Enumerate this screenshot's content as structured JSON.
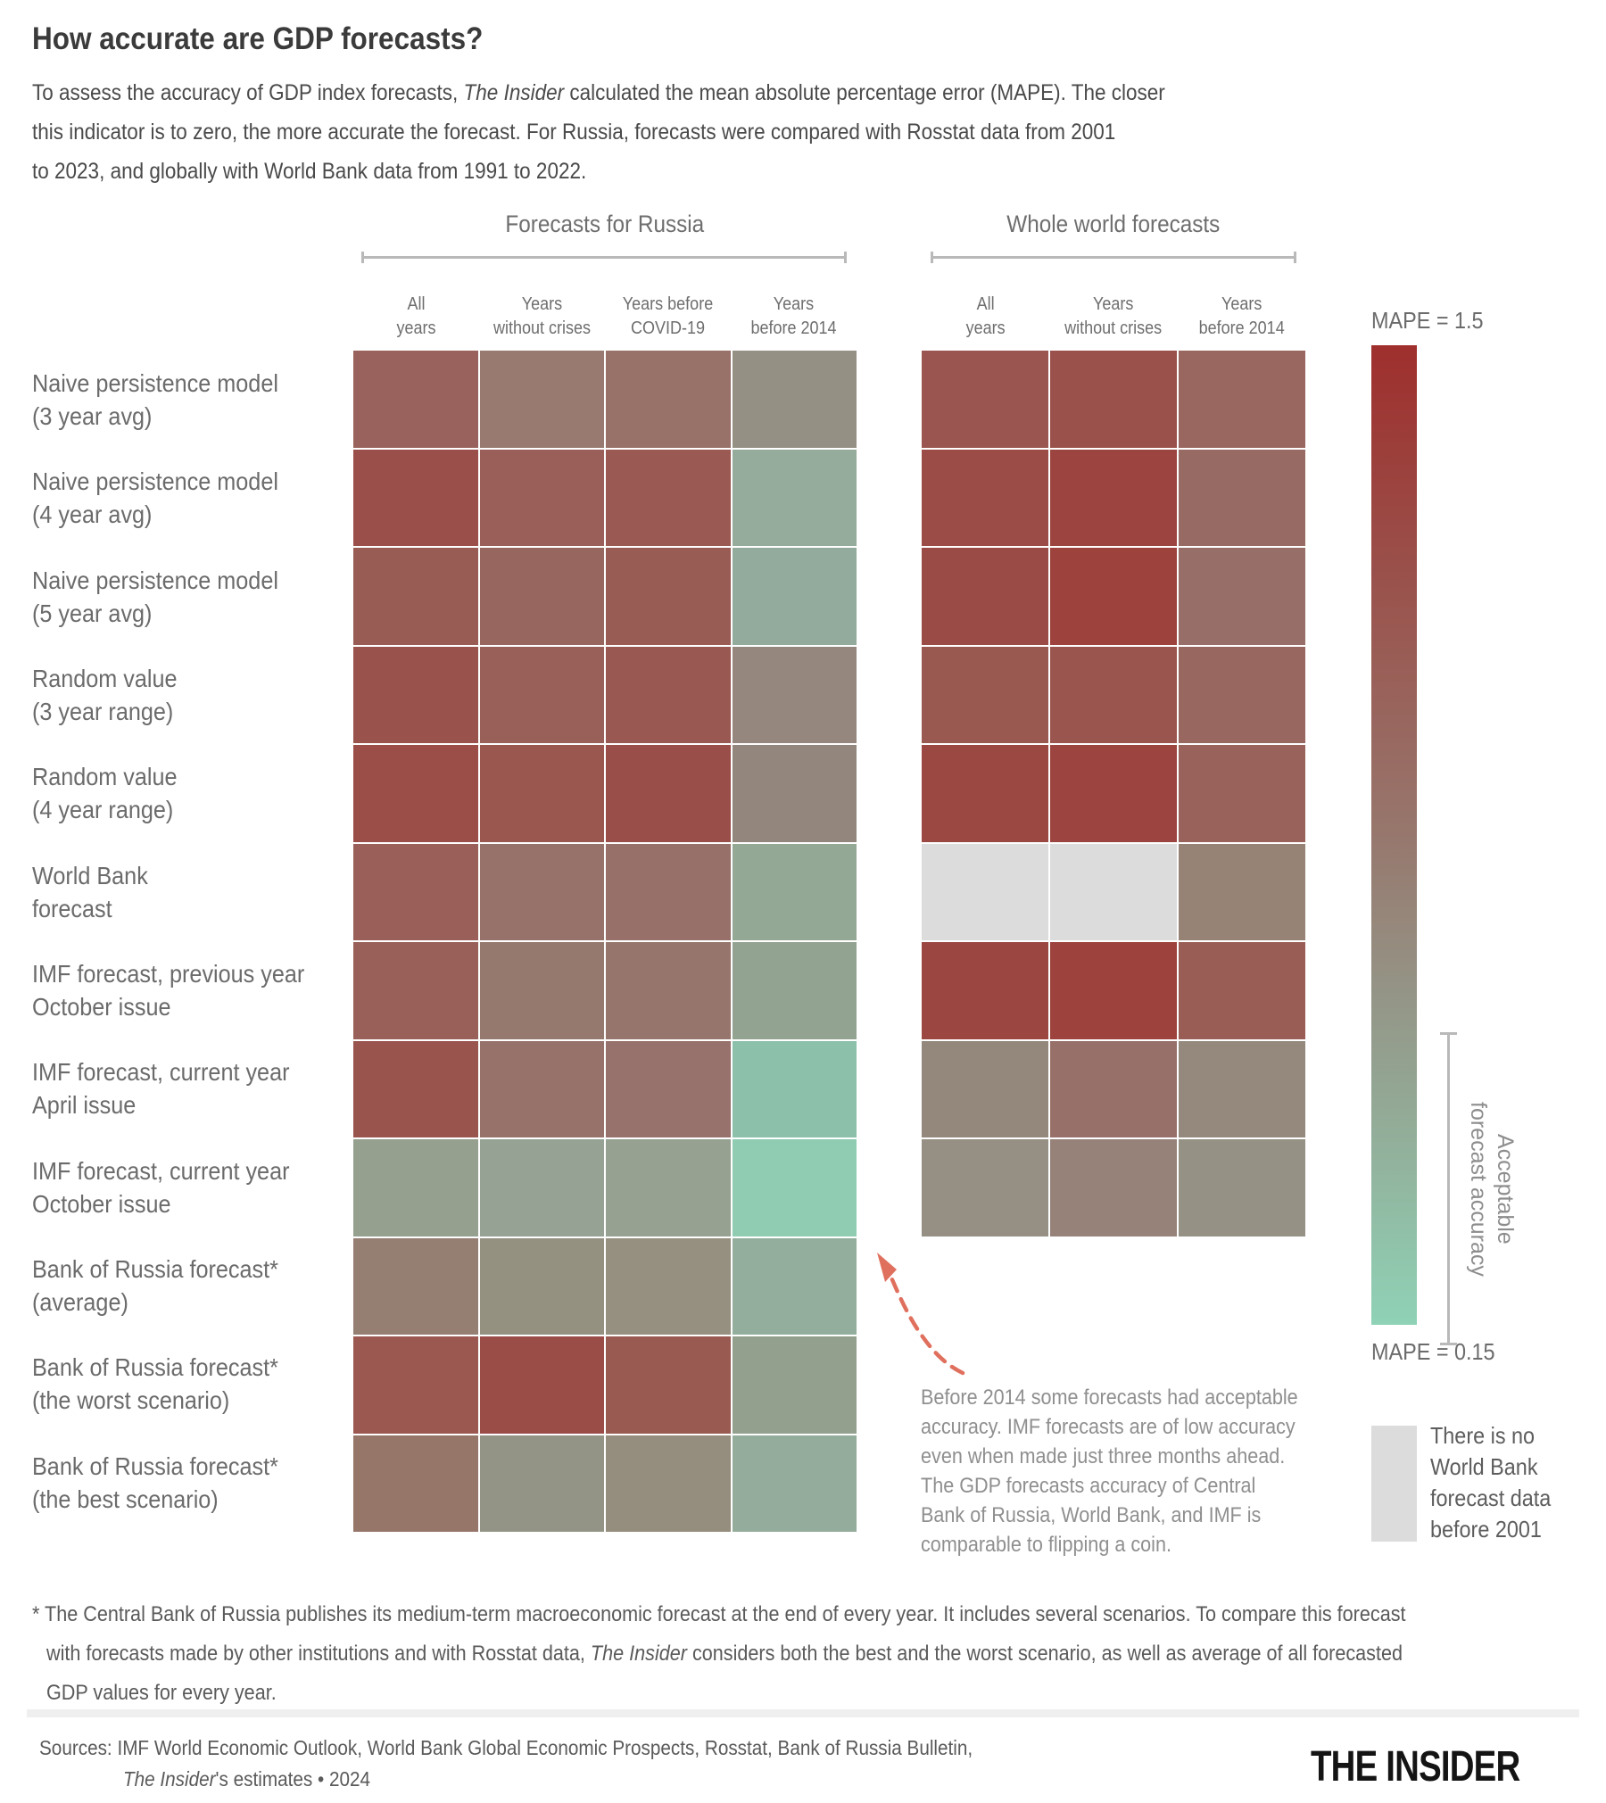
{
  "page": {
    "title": "How accurate are GDP forecasts?",
    "subtitle_lines": [
      [
        {
          "t": "To assess the accuracy of GDP index forecasts, "
        },
        {
          "t": "The Insider",
          "i": true
        },
        {
          "t": " calculated the mean absolute percentage error (MAPE). The closer"
        }
      ],
      [
        {
          "t": "this indicator is to zero, the more accurate the forecast. For Russia, forecasts were compared with Rosstat data from 2001"
        }
      ],
      [
        {
          "t": "to 2023, and globally with World Bank data from 1991 to 2022."
        }
      ]
    ],
    "footnote_lines": [
      [
        {
          "t": "* The Central Bank of Russia publishes its medium-term macroeconomic forecast at the end of every year. It includes several scenarios. To compare this forecast"
        }
      ],
      [
        {
          "t": "with forecasts made by other institutions and with Rosstat data, "
        },
        {
          "t": "The Insider",
          "i": true
        },
        {
          "t": " considers both the best and the worst scenario, as well as average of all forecasted"
        }
      ],
      [
        {
          "t": "GDP values for every year."
        }
      ]
    ],
    "sources": {
      "line1": "Sources: IMF World Economic Outlook, World Bank Global Economic Prospects, Rosstat, Bank of Russia Bulletin,",
      "line2": [
        {
          "t": "The Insider",
          "i": true
        },
        {
          "t": "'s estimates • 2024"
        }
      ]
    },
    "logo": "THE INSIDER"
  },
  "chart_data": {
    "type": "heatmap",
    "title": "How accurate are GDP forecasts?",
    "groups": [
      {
        "key": "russia",
        "title": "Forecasts for Russia",
        "columns": [
          "All\nyears",
          "Years\nwithout crises",
          "Years before\nCOVID-19",
          "Years\nbefore 2014"
        ]
      },
      {
        "key": "world",
        "title": "Whole world forecasts",
        "columns": [
          "All\nyears",
          "Years\nwithout crises",
          "Years\nbefore 2014"
        ]
      }
    ],
    "rows": [
      [
        "Naive persistence model",
        "(3 year avg)"
      ],
      [
        "Naive persistence model",
        "(4 year avg)"
      ],
      [
        "Naive persistence model",
        "(5 year avg)"
      ],
      [
        "Random value",
        "(3 year range)"
      ],
      [
        "Random value",
        "(4 year range)"
      ],
      [
        "World Bank",
        "forecast"
      ],
      [
        "IMF forecast, previous year",
        "October issue"
      ],
      [
        "IMF forecast, current year",
        "April issue"
      ],
      [
        "IMF forecast, current year",
        "October issue"
      ],
      [
        "Bank of Russia forecast*",
        "(average)"
      ],
      [
        "Bank of Russia forecast*",
        "(the worst scenario)"
      ],
      [
        "Bank of Russia forecast*",
        "(the best scenario)"
      ]
    ],
    "cells": {
      "russia": [
        [
          "#9a625c",
          "#987a70",
          "#987168",
          "#949184"
        ],
        [
          "#9a4f4a",
          "#995f58",
          "#9a5952",
          "#95ab9b"
        ],
        [
          "#995c55",
          "#97675f",
          "#995c55",
          "#93ab9c"
        ],
        [
          "#9a524c",
          "#986059",
          "#995851",
          "#95877d"
        ],
        [
          "#9b4d48",
          "#995750",
          "#9a4e49",
          "#93877d"
        ],
        [
          "#995f58",
          "#97726a",
          "#977069",
          "#94a896"
        ],
        [
          "#996059",
          "#95786e",
          "#96766c",
          "#92a391"
        ],
        [
          "#9a544e",
          "#97726b",
          "#97716b",
          "#8cc0ab"
        ],
        [
          "#95a08f",
          "#96a294",
          "#96a192",
          "#8fccb2"
        ],
        [
          "#957e72",
          "#949181",
          "#959080",
          "#94ae9d"
        ],
        [
          "#9a5851",
          "#9a4c47",
          "#995a52",
          "#93a08e"
        ],
        [
          "#967668",
          "#949486",
          "#958d7d",
          "#94ac9b"
        ]
      ],
      "world": [
        [
          "#9b5550",
          "#9a514b",
          "#99675f"
        ],
        [
          "#9b4c47",
          "#9c4540",
          "#976b63"
        ],
        [
          "#9b4b46",
          "#9d423d",
          "#976f68"
        ],
        [
          "#995950",
          "#9a554e",
          "#976760"
        ],
        [
          "#9c4842",
          "#9c443f",
          "#99625b"
        ],
        [
          "#dcdcdc",
          "#dcdcdc",
          "#968376"
        ],
        [
          "#9c4641",
          "#9d423d",
          "#9a5d56"
        ],
        [
          "#94877b",
          "#97706a",
          "#95897d"
        ],
        [
          "#959083",
          "#968279",
          "#959184"
        ]
      ]
    },
    "values_mape_estimated_from_color": {
      "russia": [
        [
          0.85,
          0.7,
          0.75,
          0.45
        ],
        [
          1.15,
          0.9,
          1.0,
          0.3
        ],
        [
          1.0,
          0.8,
          1.0,
          0.3
        ],
        [
          1.1,
          0.85,
          0.95,
          0.55
        ],
        [
          1.2,
          1.05,
          1.2,
          0.55
        ],
        [
          0.9,
          0.75,
          0.75,
          0.35
        ],
        [
          0.85,
          0.65,
          0.7,
          0.4
        ],
        [
          1.1,
          0.75,
          0.75,
          0.2
        ],
        [
          0.45,
          0.45,
          0.45,
          0.16
        ],
        [
          0.6,
          0.5,
          0.5,
          0.3
        ],
        [
          1.0,
          1.2,
          0.95,
          0.45
        ],
        [
          0.65,
          0.48,
          0.55,
          0.32
        ]
      ],
      "world": [
        [
          1.05,
          1.1,
          0.8
        ],
        [
          1.25,
          1.3,
          0.75
        ],
        [
          1.25,
          1.35,
          0.72
        ],
        [
          1.0,
          1.05,
          0.8
        ],
        [
          1.3,
          1.35,
          0.9
        ],
        [
          null,
          null,
          0.6
        ],
        [
          1.3,
          1.35,
          0.95
        ],
        [
          0.5,
          0.7,
          0.48
        ],
        [
          0.45,
          0.52,
          0.44
        ]
      ]
    },
    "legend": {
      "max_label": "MAPE = 1.5",
      "min_label": "MAPE = 0.15",
      "gradient_stops": [
        "#9e2f2d 0%",
        "#9a534d 25%",
        "#97776d 50%",
        "#949889 68%",
        "#92b49e 84%",
        "#8fd2b6 100%"
      ],
      "acceptable_band_label": "Acceptable\nforecast accuracy",
      "no_data_color": "#dcdcdc",
      "no_data_label": "There is no\nWorld Bank\nforecast data\nbefore 2001",
      "scale_range": [
        0.15,
        1.5
      ]
    },
    "annotation": {
      "text": "Before 2014 some forecasts had acceptable\naccuracy. IMF forecasts are of low accuracy\neven when made just three months ahead.\nThe GDP forecasts accuracy of Central\nBank of Russia, World Bank, and IMF is\ncomparable to flipping a coin.",
      "arrow_color": "#e0705e"
    },
    "layout": {
      "grid_on": false,
      "legend_position": "right"
    }
  }
}
